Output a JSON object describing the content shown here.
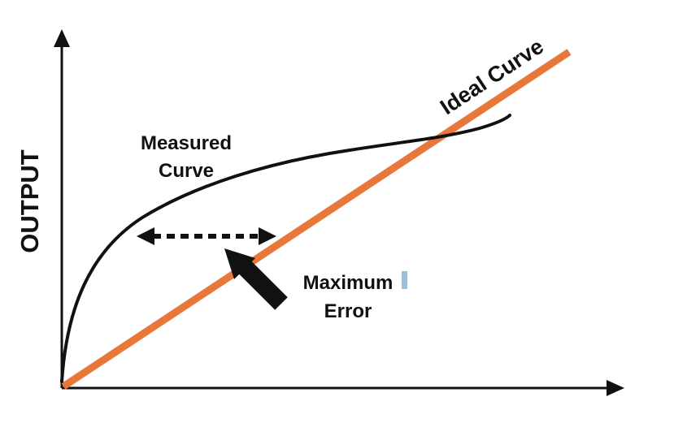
{
  "diagram": {
    "y_axis_label": "OUTPUT",
    "ideal_curve_label": "Ideal Curve",
    "measured_curve_label_line1": "Measured",
    "measured_curve_label_line2": "Curve",
    "max_error_label_line1": "Maximum",
    "max_error_label_line2": "Error"
  },
  "colors": {
    "ideal_curve": "#E8773A",
    "measured_curve": "#111111",
    "axes": "#111111",
    "arrows": "#111111",
    "text_cursor": "#9CC0DA"
  },
  "icons": {
    "error_pointer": "thick-arrow-icon",
    "error_span": "double-headed-dotted-arrow-icon"
  }
}
